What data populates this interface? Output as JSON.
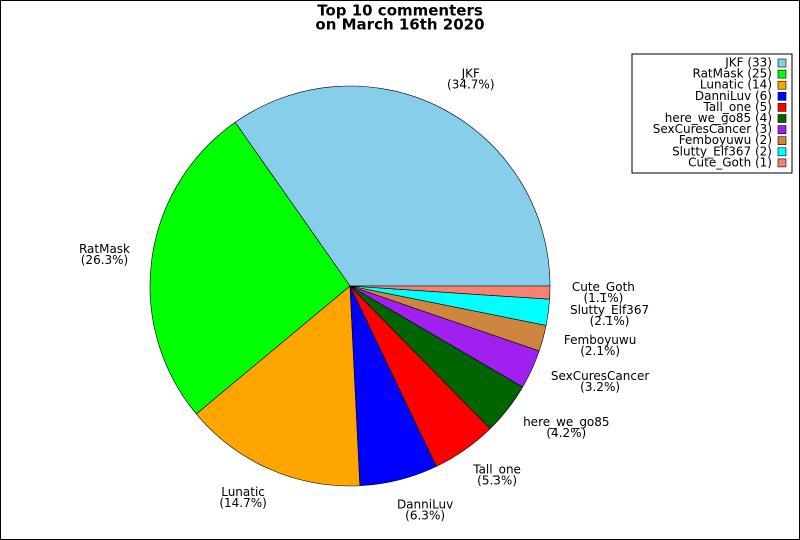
{
  "chart_data": {
    "type": "pie",
    "title": [
      "Top 10 commenters",
      "on March 16th 2020"
    ],
    "categories": [
      "JKF",
      "RatMask",
      "Lunatic",
      "DanniLuv",
      "Tall_one",
      "here_we_go85",
      "SexCuresCancer",
      "Femboyuwu",
      "Slutty_Elf367",
      "Cute_Goth"
    ],
    "values": [
      33,
      25,
      14,
      6,
      5,
      4,
      3,
      2,
      2,
      1
    ],
    "value_labels": [
      "(34.7%)",
      "(26.3%)",
      "(14.7%)",
      "(6.3%)",
      "(5.3%)",
      "(4.2%)",
      "(3.2%)",
      "(2.1%)",
      "(2.1%)",
      "(1.1%)"
    ],
    "legend_labels": [
      "JKF (33)",
      "RatMask (25)",
      "Lunatic (14)",
      "DanniLuv (6)",
      "Tall_one (5)",
      "here_we_go85 (4)",
      "SexCuresCancer (3)",
      "Femboyuwu (2)",
      "Slutty_Elf367 (2)",
      "Cute_Goth (1)"
    ],
    "colors": [
      "#87ceeb",
      "#00ff00",
      "#ffa500",
      "#0000ff",
      "#ff0000",
      "#006400",
      "#a020f0",
      "#cd853f",
      "#00ffff",
      "#fa8072"
    ],
    "legend": "upper right"
  }
}
